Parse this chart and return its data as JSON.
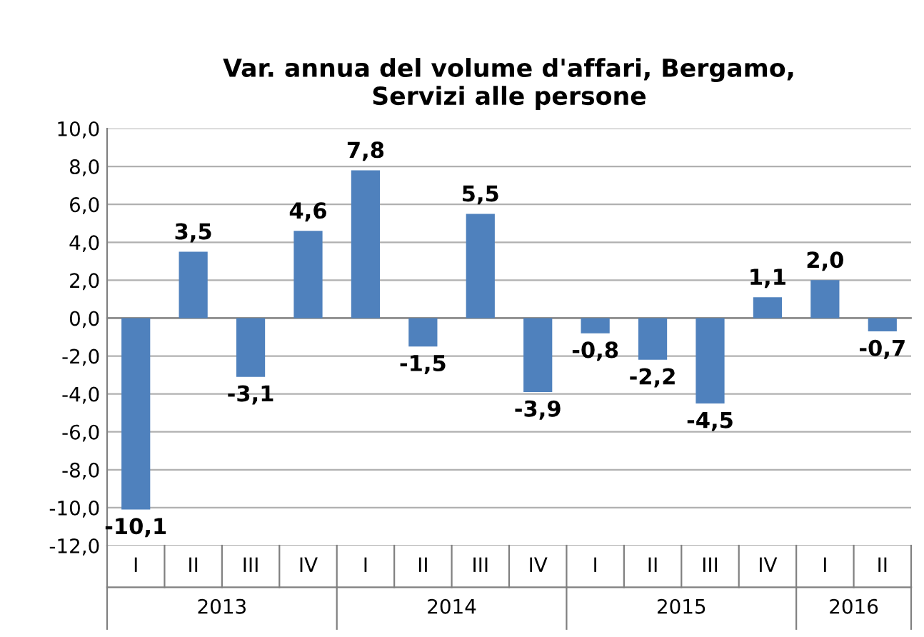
{
  "chart_data": {
    "type": "bar",
    "title": "Var. annua del volume d'affari, Bergamo,\nServizi alle persone",
    "categories": [
      "I",
      "II",
      "III",
      "IV",
      "I",
      "II",
      "III",
      "IV",
      "I",
      "II",
      "III",
      "IV",
      "I",
      "II"
    ],
    "values": [
      -10.1,
      3.5,
      -3.1,
      4.6,
      7.8,
      -1.5,
      5.5,
      -3.9,
      -0.8,
      -2.2,
      -4.5,
      1.1,
      2.0,
      -0.7
    ],
    "value_labels": [
      "-10,1",
      "3,5",
      "-3,1",
      "4,6",
      "7,8",
      "-1,5",
      "5,5",
      "-3,9",
      "-0,8",
      "-2,2",
      "-4,5",
      "1,1",
      "2,0",
      "-0,7"
    ],
    "color": "#4f81bd",
    "ylim": [
      -12,
      10
    ],
    "yticks": [
      {
        "value": -12,
        "label": "-12,0"
      },
      {
        "value": -10,
        "label": "-10,0"
      },
      {
        "value": -8,
        "label": "-8,0"
      },
      {
        "value": -6,
        "label": "-6,0"
      },
      {
        "value": -4,
        "label": "-4,0"
      },
      {
        "value": -2,
        "label": "-2,0"
      },
      {
        "value": 0,
        "label": "0,0"
      },
      {
        "value": 2,
        "label": "2,0"
      },
      {
        "value": 4,
        "label": "4,0"
      },
      {
        "value": 6,
        "label": "6,0"
      },
      {
        "value": 8,
        "label": "8,0"
      },
      {
        "value": 10,
        "label": "10,0"
      }
    ],
    "grid": "y",
    "annotations": [
      "2013",
      "2014",
      "2015",
      "2016"
    ]
  }
}
